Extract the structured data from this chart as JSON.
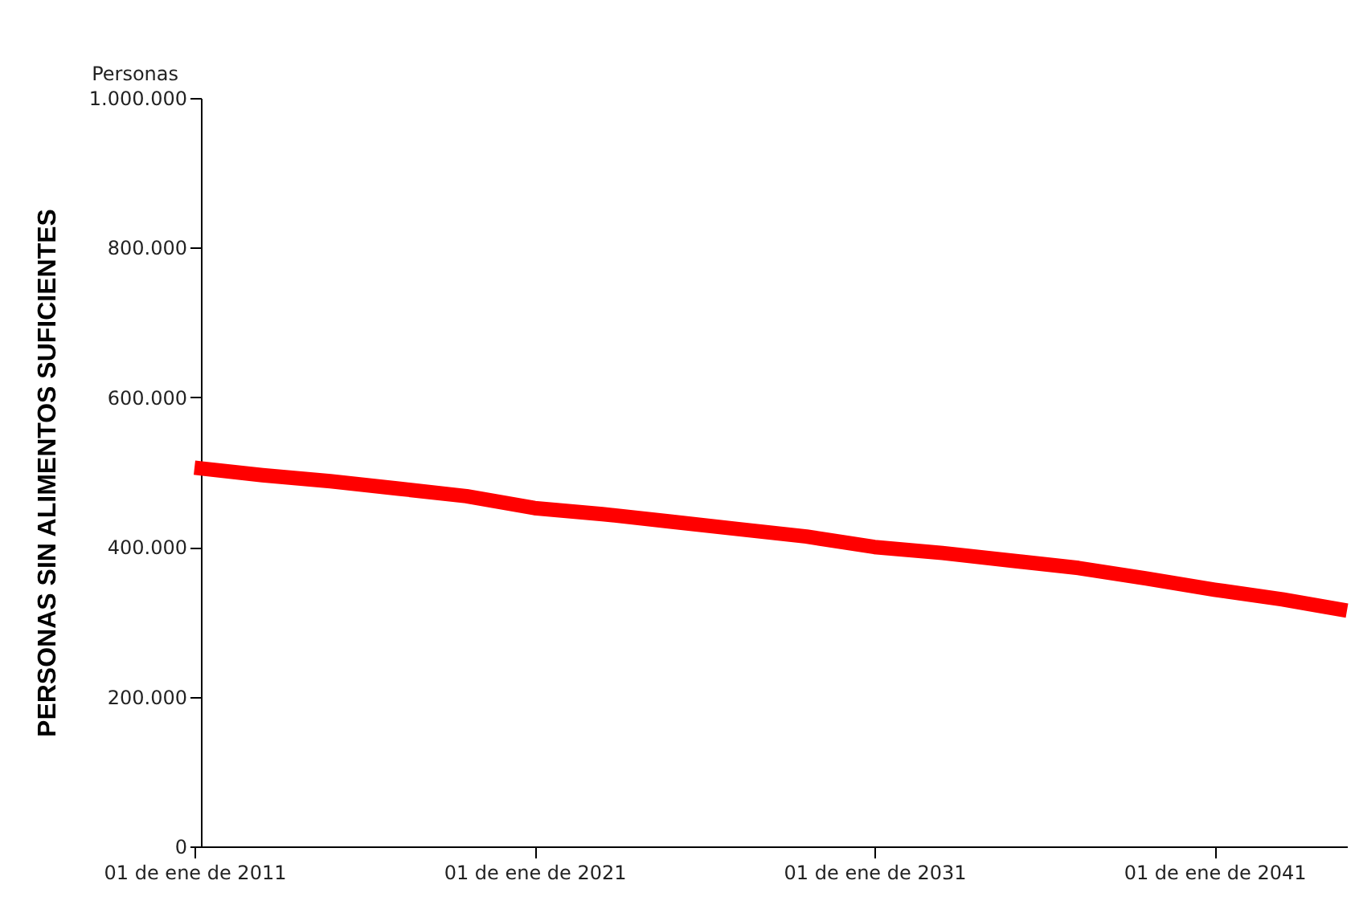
{
  "chart_data": {
    "type": "line",
    "ylabel": "PERSONAS SIN ALIMENTOS SUFICIENTES",
    "annotations": [
      "Personas"
    ],
    "x": [
      "2011-01-01",
      "2013-01-01",
      "2015-01-01",
      "2017-01-01",
      "2019-01-01",
      "2021-01-01",
      "2023-01-01",
      "2025-01-01",
      "2027-01-01",
      "2029-01-01",
      "2031-01-01",
      "2033-01-01",
      "2035-01-01",
      "2037-01-01",
      "2039-01-01",
      "2041-01-01",
      "2043-01-01",
      "2044-11-25"
    ],
    "series": [
      {
        "color": "#ff0000",
        "values": [
          506000,
          496000,
          488000,
          478000,
          468000,
          452000,
          444000,
          434000,
          424000,
          414000,
          400000,
          392000,
          382000,
          372000,
          358000,
          343000,
          330000,
          315000
        ]
      }
    ],
    "xlim": [
      "2011-01-01",
      "2044-11-25"
    ],
    "xticks": [
      {
        "value": "2011-01-01",
        "label": "01 de ene de 2011"
      },
      {
        "value": "2021-01-01",
        "label": "01 de ene de 2021"
      },
      {
        "value": "2031-01-01",
        "label": "01 de ene de 2031"
      },
      {
        "value": "2041-01-01",
        "label": "01 de ene de 2041"
      }
    ],
    "ylim": [
      0,
      1000000
    ],
    "yticks": [
      0,
      {
        "value": 200000,
        "label": "200.000"
      },
      {
        "value": 400000,
        "label": "400.000"
      },
      {
        "value": 600000,
        "label": "600.000"
      },
      {
        "value": 800000,
        "label": "800.000"
      },
      {
        "value": 1000000,
        "label": "1.000.000"
      }
    ],
    "grid": false,
    "legend": false,
    "marker": "none",
    "line_style": "solid"
  }
}
